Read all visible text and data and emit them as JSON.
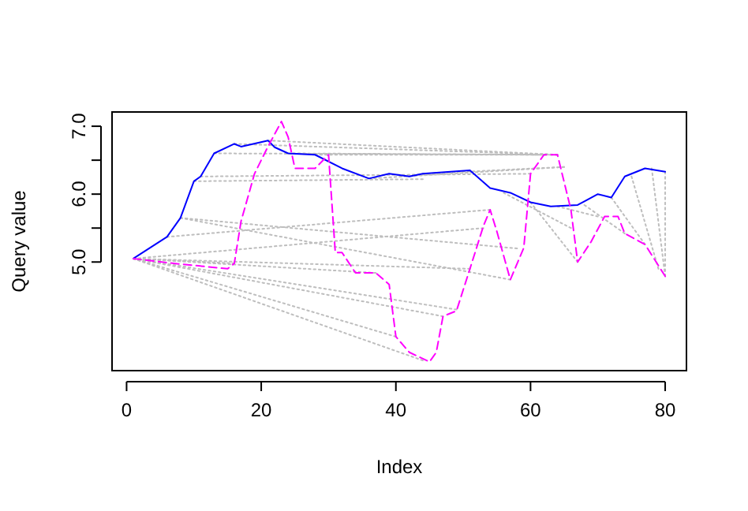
{
  "chart_data": {
    "type": "line",
    "xlabel": "Index",
    "ylabel": "Query value",
    "xlim": [
      -2.16,
      83.16
    ],
    "ylim": [
      3.4,
      7.21
    ],
    "xticks": [
      0,
      20,
      40,
      60,
      80
    ],
    "yticks": [
      {
        "value": 5,
        "label": "5.0"
      },
      {
        "value": 5.5,
        "label": null
      },
      {
        "value": 6,
        "label": "6.0"
      },
      {
        "value": 6.5,
        "label": null
      },
      {
        "value": 7,
        "label": "7.0"
      }
    ],
    "grid": false,
    "series": [
      {
        "color": "#bebebe",
        "line_style": "dotted",
        "x": [
          1,
          16
        ],
        "values": [
          5.05,
          4.98
        ]
      },
      {
        "color": "#bebebe",
        "line_style": "dotted",
        "x": [
          1,
          40
        ],
        "values": [
          5.05,
          3.9
        ]
      },
      {
        "color": "#bebebe",
        "line_style": "dotted",
        "x": [
          1,
          44
        ],
        "values": [
          5.05,
          3.55
        ]
      },
      {
        "color": "#bebebe",
        "line_style": "dotted",
        "x": [
          1,
          47
        ],
        "values": [
          5.05,
          4.2
        ]
      },
      {
        "color": "#bebebe",
        "line_style": "dotted",
        "x": [
          1,
          49
        ],
        "values": [
          5.05,
          4.3
        ]
      },
      {
        "color": "#bebebe",
        "line_style": "dotted",
        "x": [
          1,
          37
        ],
        "values": [
          5.05,
          4.84
        ]
      },
      {
        "color": "#bebebe",
        "line_style": "dotted",
        "x": [
          1,
          51
        ],
        "values": [
          5.05,
          4.9
        ]
      },
      {
        "color": "#bebebe",
        "line_style": "dotted",
        "x": [
          1,
          53
        ],
        "values": [
          5.05,
          5.5
        ]
      },
      {
        "color": "#bebebe",
        "line_style": "dotted",
        "x": [
          6,
          54
        ],
        "values": [
          5.37,
          5.77
        ]
      },
      {
        "color": "#bebebe",
        "line_style": "dotted",
        "x": [
          8,
          57
        ],
        "values": [
          5.65,
          4.74
        ]
      },
      {
        "color": "#bebebe",
        "line_style": "dotted",
        "x": [
          8,
          58
        ],
        "values": [
          5.65,
          5.2
        ]
      },
      {
        "color": "#bebebe",
        "line_style": "dotted",
        "x": [
          10,
          44
        ],
        "values": [
          6.19,
          6.22
        ]
      },
      {
        "color": "#bebebe",
        "line_style": "dotted",
        "x": [
          11,
          60
        ],
        "values": [
          6.26,
          6.3
        ]
      },
      {
        "color": "#bebebe",
        "line_style": "dotted",
        "x": [
          13,
          62
        ],
        "values": [
          6.6,
          6.58
        ]
      },
      {
        "color": "#bebebe",
        "line_style": "dotted",
        "x": [
          16,
          64
        ],
        "values": [
          6.74,
          6.58
        ]
      },
      {
        "color": "#bebebe",
        "line_style": "dotted",
        "x": [
          21,
          64
        ],
        "values": [
          6.79,
          6.58
        ]
      },
      {
        "color": "#bebebe",
        "line_style": "dotted",
        "x": [
          24,
          63
        ],
        "values": [
          6.6,
          6.58
        ]
      },
      {
        "color": "#bebebe",
        "line_style": "dotted",
        "x": [
          28,
          64
        ],
        "values": [
          6.58,
          6.58
        ]
      },
      {
        "color": "#bebebe",
        "line_style": "dotted",
        "x": [
          36,
          65
        ],
        "values": [
          6.23,
          6.4
        ]
      },
      {
        "color": "#bebebe",
        "line_style": "dotted",
        "x": [
          44,
          65
        ],
        "values": [
          6.3,
          6.4
        ]
      },
      {
        "color": "#bebebe",
        "line_style": "dotted",
        "x": [
          56,
          66
        ],
        "values": [
          6.02,
          5.5
        ]
      },
      {
        "color": "#bebebe",
        "line_style": "dotted",
        "x": [
          60,
          67
        ],
        "values": [
          5.88,
          5.0
        ]
      },
      {
        "color": "#bebebe",
        "line_style": "dotted",
        "x": [
          64,
          70
        ],
        "values": [
          5.82,
          5.67
        ]
      },
      {
        "color": "#bebebe",
        "line_style": "dotted",
        "x": [
          68,
          74
        ],
        "values": [
          5.84,
          5.42
        ]
      },
      {
        "color": "#bebebe",
        "line_style": "dotted",
        "x": [
          72,
          77
        ],
        "values": [
          5.95,
          5.26
        ]
      },
      {
        "color": "#bebebe",
        "line_style": "dotted",
        "x": [
          75,
          79
        ],
        "values": [
          6.26,
          4.9
        ]
      },
      {
        "color": "#bebebe",
        "line_style": "dotted",
        "x": [
          78,
          80
        ],
        "values": [
          6.38,
          4.79
        ]
      },
      {
        "color": "#bebebe",
        "line_style": "dotted",
        "x": [
          80,
          80
        ],
        "values": [
          6.33,
          4.79
        ]
      },
      {
        "color": "#0000ff",
        "line_style": "solid",
        "x": [
          1,
          6,
          8,
          10,
          11,
          13,
          16,
          17,
          21,
          22,
          24,
          28,
          32,
          36,
          39,
          42,
          44,
          51,
          54,
          57,
          60,
          63,
          67,
          70,
          72,
          74,
          77,
          80
        ],
        "values": [
          5.05,
          5.37,
          5.65,
          6.19,
          6.26,
          6.6,
          6.74,
          6.7,
          6.79,
          6.69,
          6.6,
          6.58,
          6.38,
          6.23,
          6.3,
          6.26,
          6.3,
          6.35,
          6.09,
          6.02,
          5.88,
          5.82,
          5.84,
          6.0,
          5.95,
          6.26,
          6.38,
          6.33
        ]
      },
      {
        "color": "#ff00ff",
        "line_style": "dashed",
        "x": [
          1,
          7,
          15,
          16,
          17,
          19,
          21,
          23,
          24,
          25,
          28,
          30,
          31,
          32,
          34,
          37,
          39,
          40,
          42,
          45,
          46,
          47,
          49,
          51,
          53,
          54,
          55,
          57,
          59,
          60,
          62,
          64,
          66,
          67,
          69,
          71,
          73,
          74,
          77,
          80
        ],
        "values": [
          5.05,
          4.98,
          4.9,
          4.98,
          5.6,
          6.3,
          6.7,
          7.07,
          6.84,
          6.38,
          6.38,
          6.58,
          5.14,
          5.14,
          4.84,
          4.84,
          4.67,
          3.9,
          3.67,
          3.53,
          3.67,
          4.2,
          4.28,
          4.9,
          5.53,
          5.77,
          5.45,
          4.74,
          5.21,
          6.3,
          6.58,
          6.58,
          5.77,
          5.0,
          5.3,
          5.67,
          5.67,
          5.42,
          5.26,
          4.79
        ]
      }
    ]
  }
}
